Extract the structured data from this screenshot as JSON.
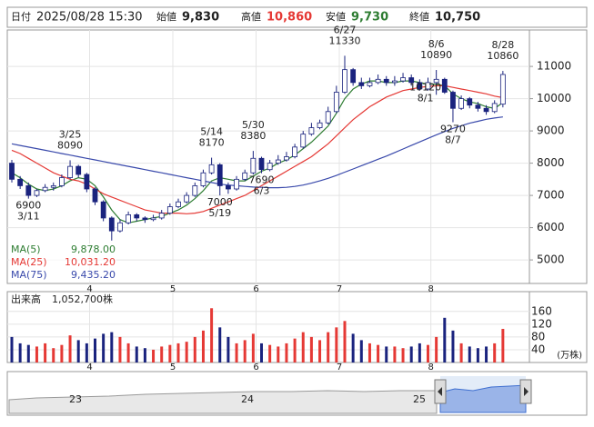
{
  "header": {
    "date_label": "日付",
    "date": "2025/08/28 15:30",
    "open_label": "始値",
    "open": "9,830",
    "high_label": "高値",
    "high": "10,860",
    "low_label": "安値",
    "low": "9,730",
    "close_label": "終値",
    "close": "10,750"
  },
  "chart_data": {
    "type": "candlestick",
    "categories": [
      null,
      null,
      null,
      null,
      null,
      null,
      null,
      null,
      null,
      null,
      "4",
      null,
      null,
      null,
      null,
      null,
      null,
      null,
      null,
      null,
      "5",
      null,
      null,
      null,
      null,
      null,
      null,
      null,
      null,
      null,
      "6",
      null,
      null,
      null,
      null,
      null,
      null,
      null,
      null,
      null,
      "7",
      null,
      null,
      null,
      null,
      null,
      null,
      null,
      null,
      null,
      null,
      "8",
      null,
      null,
      null,
      null,
      null,
      null,
      null,
      null
    ],
    "open": [
      8000,
      7500,
      7300,
      7000,
      7150,
      7250,
      7300,
      7550,
      7900,
      7650,
      7200,
      6800,
      6300,
      5900,
      6150,
      6400,
      6300,
      6250,
      6300,
      6450,
      6650,
      6800,
      7000,
      7300,
      7700,
      7950,
      7300,
      7200,
      7500,
      7700,
      8150,
      7800,
      8000,
      8100,
      8200,
      8500,
      8900,
      9100,
      9250,
      9600,
      10200,
      10900,
      10500,
      10400,
      10500,
      10600,
      10500,
      10550,
      10650,
      10500,
      10300,
      10500,
      10600,
      10200,
      9700,
      10000,
      9800,
      9700,
      9600,
      9830
    ],
    "high": [
      8100,
      7600,
      7400,
      7200,
      7350,
      7400,
      7650,
      8090,
      7950,
      7700,
      7250,
      6850,
      6350,
      6250,
      6500,
      6450,
      6350,
      6400,
      6550,
      6750,
      6900,
      7100,
      7400,
      7800,
      8170,
      8000,
      7400,
      7600,
      7800,
      8380,
      8200,
      8100,
      8250,
      8350,
      8600,
      9000,
      9250,
      9350,
      9750,
      10400,
      11330,
      10950,
      10650,
      10650,
      10750,
      10700,
      10700,
      10800,
      10750,
      10600,
      10650,
      10890,
      10650,
      10250,
      10100,
      10050,
      9900,
      9800,
      9950,
      10860
    ],
    "low": [
      7400,
      7200,
      6900,
      6950,
      7100,
      7150,
      7250,
      7500,
      7550,
      7100,
      6700,
      6200,
      5600,
      5850,
      6100,
      6200,
      6150,
      6200,
      6250,
      6400,
      6600,
      6750,
      6950,
      7250,
      7650,
      7000,
      7050,
      7150,
      7450,
      7650,
      7690,
      7750,
      7950,
      8050,
      8150,
      8450,
      8850,
      9050,
      9200,
      9550,
      10150,
      10400,
      10300,
      10350,
      10450,
      10400,
      10400,
      10500,
      10400,
      10250,
      10250,
      10120,
      10150,
      9270,
      9650,
      9700,
      9600,
      9500,
      9550,
      9730
    ],
    "close": [
      7500,
      7300,
      7000,
      7150,
      7250,
      7300,
      7550,
      7900,
      7650,
      7200,
      6800,
      6300,
      5900,
      6150,
      6400,
      6300,
      6250,
      6300,
      6450,
      6650,
      6800,
      7000,
      7300,
      7700,
      7950,
      7300,
      7200,
      7500,
      7700,
      8150,
      7800,
      8000,
      8100,
      8200,
      8500,
      8900,
      9100,
      9250,
      9600,
      10200,
      10900,
      10500,
      10400,
      10500,
      10600,
      10500,
      10550,
      10650,
      10500,
      10300,
      10500,
      10600,
      10200,
      9700,
      10000,
      9800,
      9700,
      9600,
      9850,
      10750
    ],
    "up_color": "#ffffff",
    "down_color": "#1a237e",
    "ylim": [
      4270,
      12130
    ],
    "yticks": [
      5000,
      6000,
      7000,
      8000,
      9000,
      10000,
      11000
    ],
    "series": [
      {
        "name": "MA(5)",
        "value_label": "9,878.00",
        "color": "#2e7d32",
        "values": [
          7700,
          7550,
          7350,
          7200,
          7150,
          7200,
          7300,
          7450,
          7550,
          7500,
          7300,
          6950,
          6550,
          6250,
          6150,
          6200,
          6250,
          6300,
          6350,
          6450,
          6550,
          6700,
          6900,
          7150,
          7450,
          7550,
          7500,
          7450,
          7450,
          7600,
          7750,
          7850,
          8000,
          8100,
          8250,
          8450,
          8650,
          8900,
          9150,
          9550,
          10000,
          10300,
          10450,
          10550,
          10550,
          10500,
          10500,
          10550,
          10550,
          10500,
          10450,
          10450,
          10400,
          10150,
          10000,
          9900,
          9850,
          9750,
          9700,
          9878
        ]
      },
      {
        "name": "MA(25)",
        "value_label": "10,031.20",
        "color": "#e53935",
        "values": [
          8400,
          8300,
          8150,
          8000,
          7850,
          7700,
          7600,
          7500,
          7450,
          7350,
          7200,
          7050,
          6950,
          6850,
          6750,
          6650,
          6550,
          6500,
          6450,
          6450,
          6450,
          6430,
          6450,
          6500,
          6600,
          6700,
          6800,
          6900,
          7000,
          7150,
          7300,
          7450,
          7600,
          7750,
          7900,
          8050,
          8200,
          8400,
          8600,
          8850,
          9100,
          9350,
          9550,
          9750,
          9900,
          10050,
          10150,
          10250,
          10300,
          10350,
          10380,
          10400,
          10400,
          10350,
          10300,
          10250,
          10200,
          10150,
          10080,
          10031.2
        ]
      },
      {
        "name": "MA(75)",
        "value_label": "9,435.20",
        "color": "#3949ab",
        "values": [
          8600,
          8550,
          8500,
          8450,
          8400,
          8350,
          8300,
          8250,
          8200,
          8150,
          8100,
          8050,
          8000,
          7950,
          7900,
          7850,
          7800,
          7750,
          7700,
          7650,
          7600,
          7550,
          7500,
          7450,
          7400,
          7350,
          7320,
          7300,
          7280,
          7260,
          7250,
          7240,
          7240,
          7250,
          7280,
          7320,
          7380,
          7450,
          7530,
          7620,
          7720,
          7820,
          7920,
          8020,
          8120,
          8220,
          8330,
          8440,
          8550,
          8660,
          8770,
          8880,
          8980,
          9080,
          9160,
          9240,
          9300,
          9360,
          9400,
          9435.2
        ]
      }
    ],
    "annotations": [
      [
        "3/25",
        "8090"
      ],
      [
        "6900",
        "3/11"
      ],
      [
        "5/14",
        "8170"
      ],
      [
        "5/30",
        "8380"
      ],
      [
        "7000",
        "5/19"
      ],
      [
        "7690",
        "6/3"
      ],
      [
        "6/27",
        "11330"
      ],
      [
        "8/6",
        "10890"
      ],
      [
        "8/28",
        "10860"
      ],
      [
        "10120",
        "8/1"
      ],
      [
        "9270",
        "8/7"
      ]
    ],
    "volume": {
      "label": "出来高",
      "value_label": "1,052,700株",
      "unit": "(万株)",
      "up_color": "#e53935",
      "down_color": "#1a237e",
      "values": [
        80,
        60,
        55,
        50,
        60,
        45,
        55,
        85,
        70,
        60,
        75,
        90,
        95,
        80,
        60,
        50,
        45,
        40,
        50,
        55,
        60,
        65,
        80,
        100,
        170,
        110,
        80,
        60,
        70,
        90,
        60,
        55,
        50,
        60,
        75,
        95,
        80,
        70,
        95,
        110,
        130,
        90,
        70,
        60,
        55,
        50,
        50,
        45,
        50,
        60,
        55,
        80,
        140,
        100,
        60,
        50,
        45,
        50,
        60,
        105.27
      ],
      "ylim": [
        0,
        222
      ],
      "yticks": [
        40,
        80,
        120,
        160
      ]
    },
    "navigator": {
      "labels": [
        "23",
        "24",
        "25"
      ]
    },
    "grid": true
  }
}
